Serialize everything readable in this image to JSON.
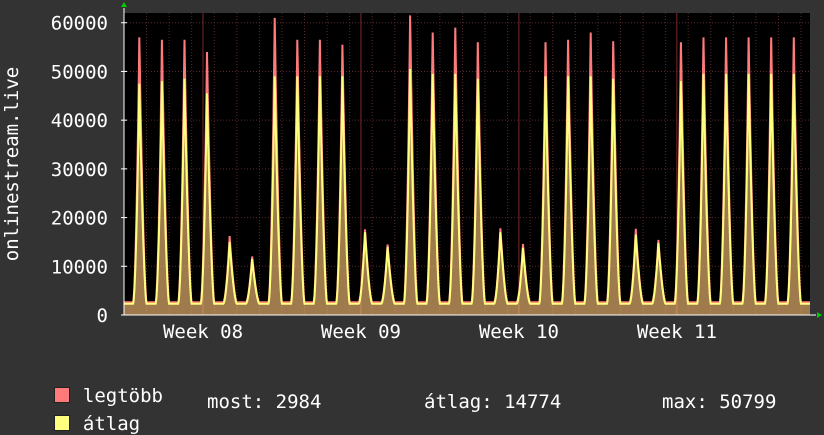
{
  "chart_data": {
    "type": "area",
    "ylabel": "onlinestream.live",
    "ylim": [
      0,
      62000
    ],
    "y_ticks": [
      "0",
      "10000",
      "20000",
      "30000",
      "40000",
      "50000",
      "60000"
    ],
    "y_tick_values": [
      0,
      10000,
      20000,
      30000,
      40000,
      50000,
      60000
    ],
    "x_ticks": [
      "Week 08",
      "Week 09",
      "Week 10",
      "Week 11"
    ],
    "x_tick_days": [
      3.5,
      10.5,
      17.5,
      24.5
    ],
    "x_range_days": [
      0,
      30.4
    ],
    "grid": true,
    "colors": {
      "background": "#333333",
      "plot": "#000000",
      "grid": "#5a2828",
      "max": "#ff7b7b",
      "avg": "#ffff7f",
      "axis": "#ffffff",
      "arrow": "#00cc00"
    },
    "series": [
      {
        "name": "legtöbb",
        "color": "#ff7b7b",
        "daily_peaks": [
          57000,
          56500,
          56500,
          54000,
          16200,
          12000,
          61000,
          56500,
          56500,
          55500,
          17600,
          14500,
          61500,
          58000,
          59000,
          56000,
          17800,
          14600,
          56000,
          56500,
          58000,
          56200,
          17700,
          15400,
          56000,
          57000
        ]
      },
      {
        "name": "átlag",
        "color": "#ffff7f",
        "daily_peaks": [
          47500,
          48000,
          48500,
          45500,
          15000,
          11500,
          49000,
          49000,
          49000,
          49000,
          17000,
          14000,
          50500,
          49500,
          49500,
          48500,
          17000,
          13800,
          49000,
          49000,
          49000,
          48500,
          16500,
          14800,
          48000,
          49500
        ]
      }
    ],
    "legend_position": "bottom-left",
    "stats": {
      "most_label": "most:",
      "most_value": "2984",
      "atlag_label": "átlag:",
      "atlag_value": "14774",
      "max_label": "max:",
      "max_value": "50799"
    }
  }
}
